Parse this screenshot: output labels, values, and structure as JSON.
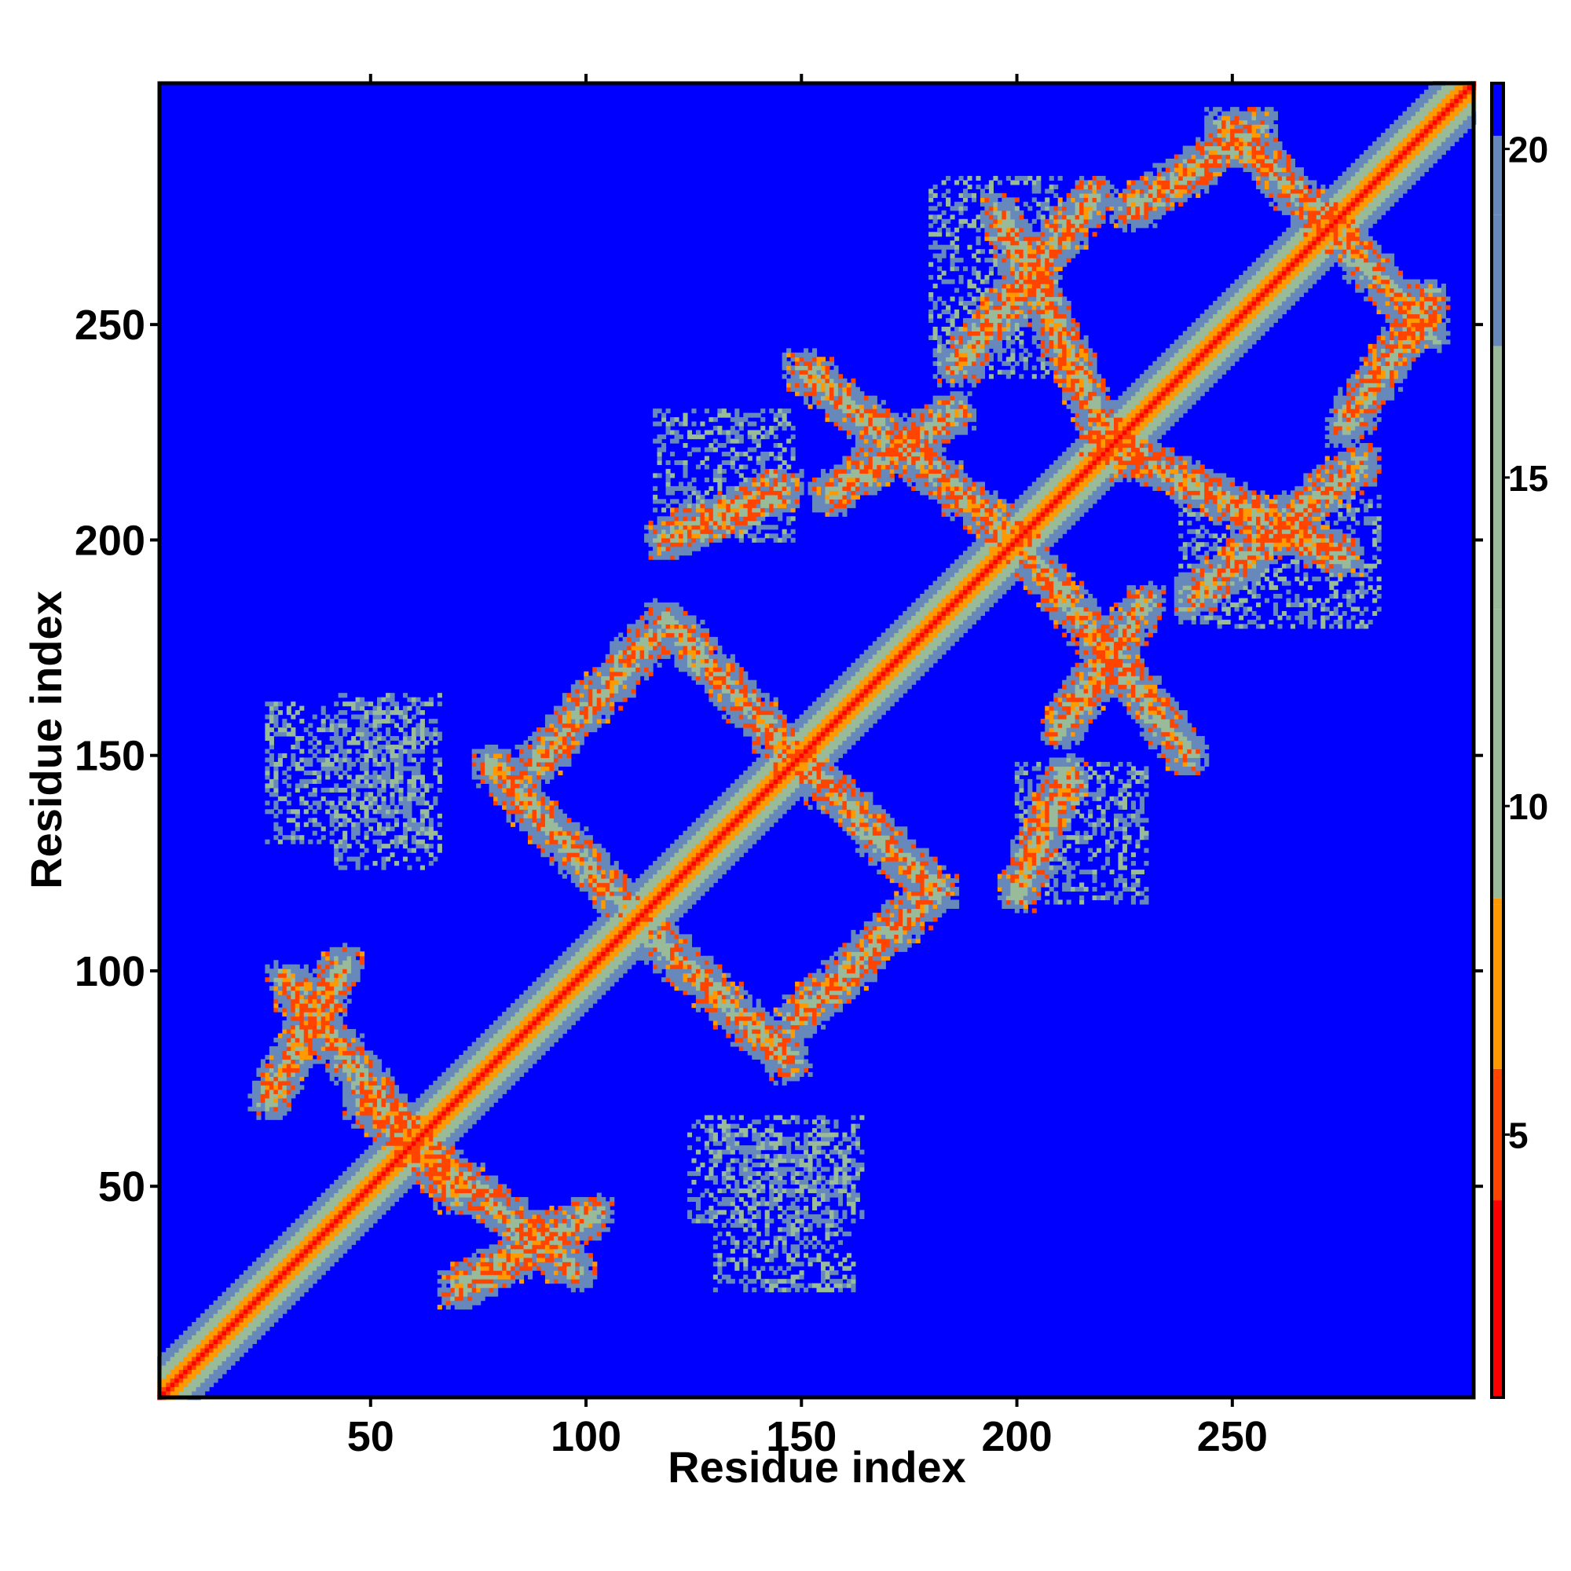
{
  "chart_data": {
    "type": "heatmap",
    "title": "",
    "xlabel": "Residue index",
    "ylabel": "Residue index",
    "xlim": [
      1,
      306
    ],
    "ylim": [
      1,
      306
    ],
    "x_ticks": [
      50,
      100,
      150,
      200,
      250
    ],
    "y_ticks": [
      50,
      100,
      150,
      200,
      250
    ],
    "colorbar": {
      "ticks": [
        5,
        10,
        15,
        20
      ],
      "range": [
        1,
        21
      ],
      "colors": {
        "low": "#ff0000",
        "mid_low": "#ff9900",
        "mid": "#99bb99",
        "mid_high": "#6688bb",
        "high": "#0000ff"
      }
    },
    "background_color": "#0000ff",
    "diagonal": {
      "core_color": "#ff0000",
      "inner_color": "#ff8800",
      "outer_color": "#99bb99"
    },
    "contact_patterns": [
      {
        "type": "antiparallel",
        "i_start": 26,
        "i_end": 44,
        "j_start": 70,
        "j_end": 102
      },
      {
        "type": "antiparallel",
        "i_start": 48,
        "i_end": 98,
        "j_start": 70,
        "j_end": 30
      },
      {
        "type": "antiparallel",
        "i_start": 88,
        "i_end": 116,
        "j_start": 148,
        "j_end": 178
      },
      {
        "type": "antiparallel",
        "i_start": 116,
        "i_end": 148,
        "j_start": 108,
        "j_end": 78
      },
      {
        "type": "antiparallel",
        "i_start": 148,
        "i_end": 182,
        "j_start": 150,
        "j_end": 118
      },
      {
        "type": "antiparallel",
        "i_start": 118,
        "i_end": 146,
        "j_start": 200,
        "j_end": 212
      },
      {
        "type": "antiparallel",
        "i_start": 156,
        "i_end": 186,
        "j_start": 210,
        "j_end": 230
      },
      {
        "type": "antiparallel",
        "i_start": 186,
        "i_end": 218,
        "j_start": 240,
        "j_end": 280
      },
      {
        "type": "antiparallel",
        "i_start": 200,
        "i_end": 240,
        "j_start": 200,
        "j_end": 150
      },
      {
        "type": "antiparallel",
        "i_start": 218,
        "i_end": 276,
        "j_start": 224,
        "j_end": 196
      },
      {
        "type": "antiparallel",
        "i_start": 226,
        "i_end": 256,
        "j_start": 276,
        "j_end": 296
      },
      {
        "type": "antiparallel",
        "i_start": 270,
        "i_end": 296,
        "j_start": 276,
        "j_end": 248
      },
      {
        "type": "patch",
        "i_start": 26,
        "i_end": 62,
        "j_start": 130,
        "j_end": 162
      },
      {
        "type": "patch",
        "i_start": 124,
        "i_end": 164,
        "j_start": 42,
        "j_end": 66
      },
      {
        "type": "patch",
        "i_start": 200,
        "i_end": 230,
        "j_start": 116,
        "j_end": 148
      },
      {
        "type": "patch",
        "i_start": 238,
        "i_end": 284,
        "j_start": 180,
        "j_end": 210
      }
    ]
  }
}
